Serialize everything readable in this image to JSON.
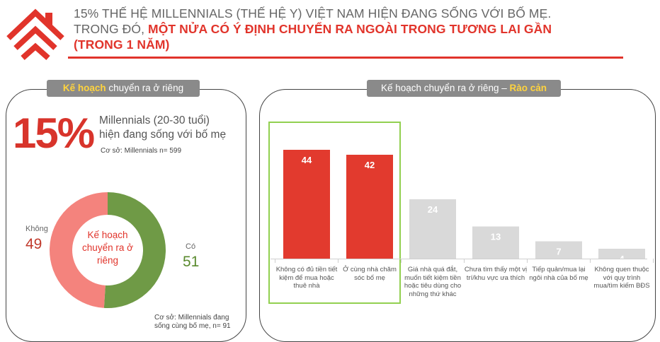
{
  "header": {
    "line1": "15% THẾ HỆ MILLENNIALS (THẾ HỆ Y) VIỆT NAM HIỆN ĐANG SỐNG VỚI BỐ MẸ.",
    "line2_prefix": "TRONG ĐÓ, ",
    "line2_red": "MỘT NỬA CÓ Ý ĐỊNH CHUYỂN RA NGOÀI TRONG TƯƠNG LAI GẦN",
    "line3_red": "(TRONG 1 NĂM)"
  },
  "left_panel": {
    "pill_highlight": "Kế hoạch",
    "pill_rest": " chuyển ra ở riêng",
    "big_number": "15%",
    "stat_line1": "Millennials (20-30 tuổi)",
    "stat_line2": "hiện đang sống với bố mẹ",
    "base1": "Cơ sở: Millennials n= 599",
    "center_label_1": "Kế hoạch",
    "center_label_2": "chuyển ra ở",
    "center_label_3": "riêng",
    "base2_line1": "Cơ sở: Millennials đang",
    "base2_line2": "sống cùng bố mẹ, n= 91"
  },
  "right_panel": {
    "pill_text": "Kế hoạch chuyển ra ở riêng – ",
    "pill_highlight": "Rào cản"
  },
  "colors": {
    "red": "#e1342b",
    "bar_red": "#e23a2e",
    "bar_gray": "#d9d9d9",
    "donut_pink": "#f4837d",
    "donut_green": "#6f9a46",
    "highlight_box": "#92d050"
  },
  "chart_data": [
    {
      "type": "pie",
      "labels": [
        "Không",
        "Có"
      ],
      "values": [
        49,
        51
      ],
      "value_labels": [
        "49",
        "51"
      ],
      "colors": [
        "#f4837d",
        "#6f9a46"
      ]
    },
    {
      "type": "bar",
      "categories": [
        "Không có đủ tiền tiết kiệm để mua hoặc thuê nhà",
        "Ở cùng nhà chăm sóc bố mẹ",
        "Giá nhà quá đắt, muốn tiết kiệm tiền hoặc tiêu dùng cho những thứ khác",
        "Chưa tìm thấy một vị trí/khu vực ưa thích",
        "Tiếp quản/mua lại ngôi nhà của bố mẹ",
        "Không quen thuộc với quy trình mua/tìm kiếm BĐS"
      ],
      "category_lines": [
        [
          "Không có đủ tiền tiết",
          "kiệm để mua hoặc",
          "thuê nhà"
        ],
        [
          "Ở cùng nhà chăm",
          "sóc bố mẹ"
        ],
        [
          "Giá nhà quá đắt,",
          "muốn tiết kiệm tiền",
          "hoặc tiêu dùng cho",
          "những thứ khác"
        ],
        [
          "Chưa tìm thấy một vị",
          "trí/khu vực ưa thích"
        ],
        [
          "Tiếp quản/mua lại",
          "ngôi nhà của bố mẹ"
        ],
        [
          "Không quen thuộc",
          "với quy trình",
          "mua/tìm kiếm BĐS"
        ]
      ],
      "values": [
        44,
        42,
        24,
        13,
        7,
        4
      ],
      "value_labels": [
        "44",
        "42",
        "24",
        "13",
        "7",
        "4"
      ],
      "bar_colors": [
        "#e23a2e",
        "#e23a2e",
        "#d9d9d9",
        "#d9d9d9",
        "#d9d9d9",
        "#d9d9d9"
      ],
      "ylim": [
        0,
        44
      ]
    }
  ]
}
